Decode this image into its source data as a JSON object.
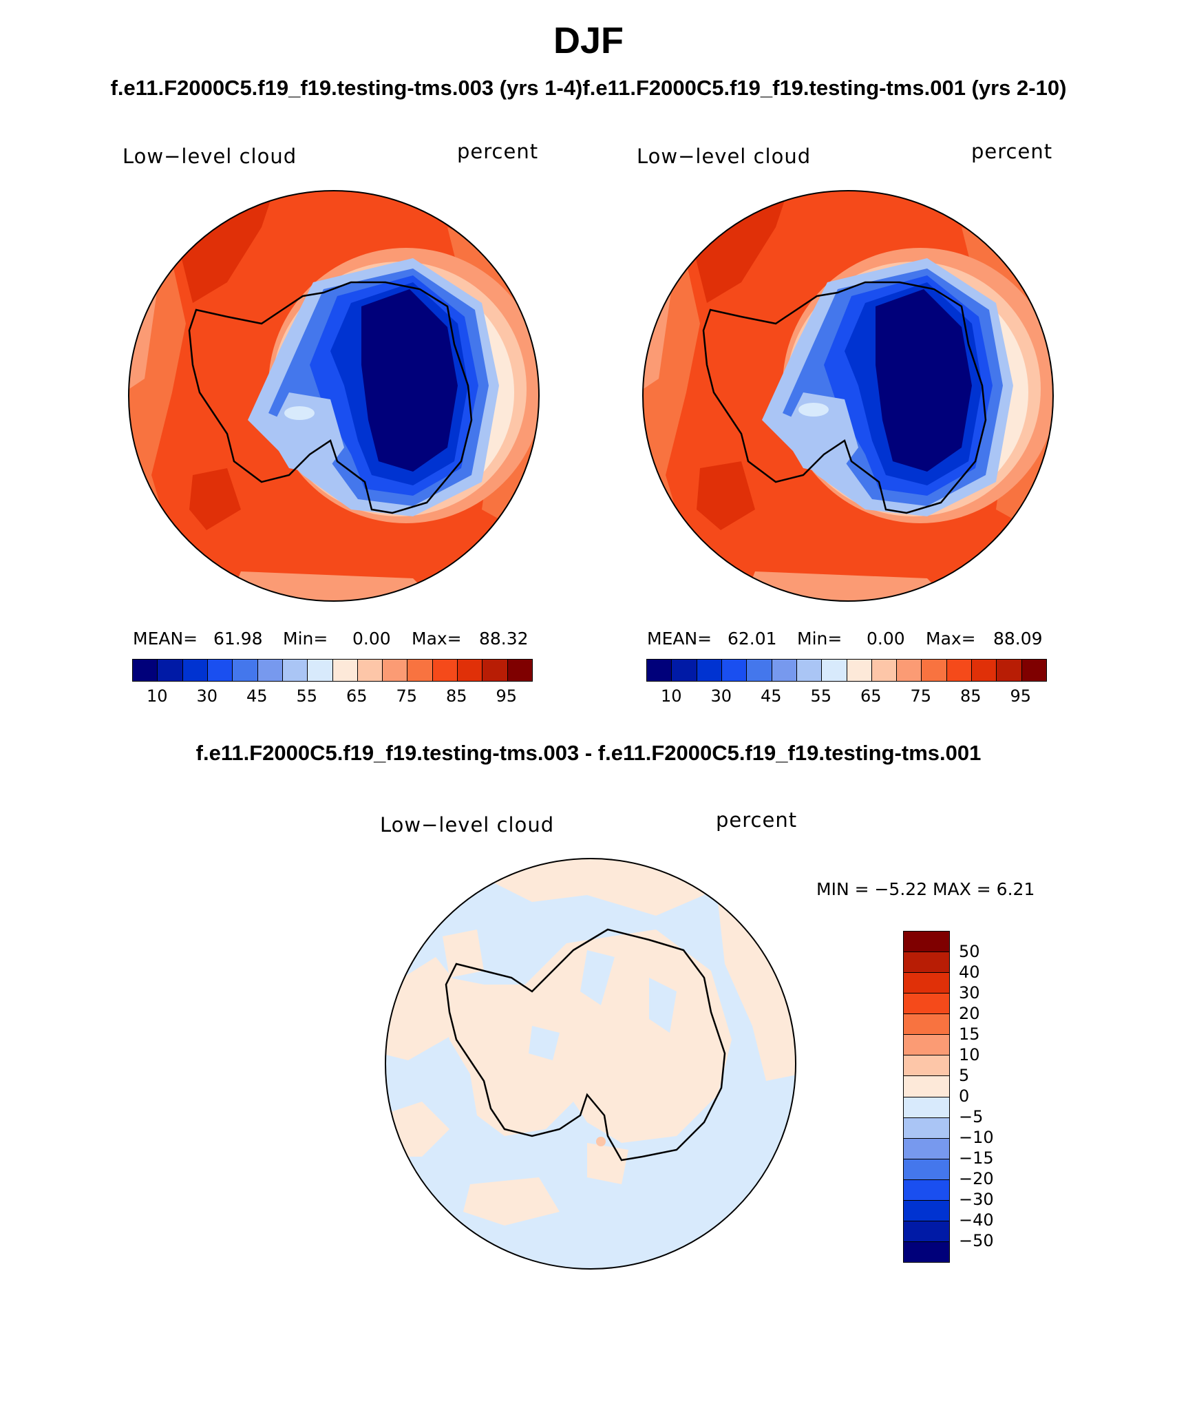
{
  "header": {
    "title": "DJF",
    "subtitle": "f.e11.F2000C5.f19_f19.testing-tms.003 (yrs 1-4)f.e11.F2000C5.f19_f19.testing-tms.001 (yrs 2-10)"
  },
  "panel_left": {
    "variable": "Low−level cloud",
    "units": "percent",
    "stats": {
      "mean_label": "MEAN=",
      "mean": "61.98",
      "min_label": "Min=",
      "min": "0.00",
      "max_label": "Max=",
      "max": "88.32"
    }
  },
  "panel_right": {
    "variable": "Low−level cloud",
    "units": "percent",
    "stats": {
      "mean_label": "MEAN=",
      "mean": "62.01",
      "min_label": "Min=",
      "min": "0.00",
      "max_label": "Max=",
      "max": "88.09"
    }
  },
  "colorbar_top": {
    "colors": [
      "#00007a",
      "#001aa6",
      "#0033d1",
      "#1a4ff0",
      "#4477ec",
      "#7799ee",
      "#aac5f5",
      "#d8eafc",
      "#fde9d9",
      "#fdc6a8",
      "#fb9b74",
      "#f87340",
      "#f54a1a",
      "#e03008",
      "#b81d05",
      "#7f0000"
    ],
    "labels": [
      "10",
      "30",
      "45",
      "55",
      "65",
      "75",
      "85",
      "95"
    ]
  },
  "difference": {
    "title": "f.e11.F2000C5.f19_f19.testing-tms.003 - f.e11.F2000C5.f19_f19.testing-tms.001",
    "variable": "Low−level cloud",
    "units": "percent",
    "range_text": "MIN =   −5.22  MAX =     6.21",
    "colorbar": {
      "colors": [
        "#7f0000",
        "#b81d05",
        "#e03008",
        "#f54a1a",
        "#f87340",
        "#fb9b74",
        "#fdc6a8",
        "#fde9d9",
        "#d8eafc",
        "#aac5f5",
        "#7799ee",
        "#4477ec",
        "#1a4ff0",
        "#0033d1",
        "#001aa6",
        "#00007a"
      ],
      "labels": [
        "50",
        "40",
        "30",
        "20",
        "15",
        "10",
        "5",
        "0",
        "−5",
        "−10",
        "−15",
        "−20",
        "−30",
        "−40",
        "−50"
      ]
    }
  }
}
